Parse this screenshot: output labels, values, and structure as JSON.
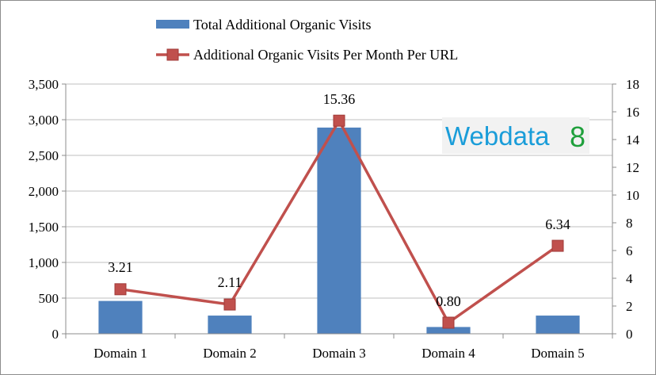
{
  "chart_data": {
    "type": "bar",
    "categories": [
      "Domain 1",
      "Domain 2",
      "Domain 3",
      "Domain 4",
      "Domain 5"
    ],
    "series": [
      {
        "name": "Total Additional Organic Visits",
        "type": "bar",
        "axis": "left",
        "color": "#4f81bd",
        "values": [
          460,
          255,
          2890,
          95,
          255
        ]
      },
      {
        "name": "Additional Organic Visits Per Month Per URL",
        "type": "line",
        "axis": "right",
        "color": "#c0504d",
        "values": [
          3.21,
          2.11,
          15.36,
          0.8,
          6.34
        ],
        "data_labels": [
          "3.21",
          "2.11",
          "15.36",
          "0.80",
          "6.34"
        ]
      }
    ],
    "y_left": {
      "min": 0,
      "max": 3500,
      "ticks": [
        0,
        500,
        1000,
        1500,
        2000,
        2500,
        3000,
        3500
      ],
      "tick_labels": [
        "0",
        "500",
        "1,000",
        "1,500",
        "2,000",
        "2,500",
        "3,000",
        "3,500"
      ]
    },
    "y_right": {
      "min": 0,
      "max": 18,
      "ticks": [
        0,
        2,
        4,
        6,
        8,
        10,
        12,
        14,
        16,
        18
      ],
      "tick_labels": [
        "0",
        "2",
        "4",
        "6",
        "8",
        "10",
        "12",
        "14",
        "16",
        "18"
      ]
    },
    "title": "",
    "xlabel": "",
    "ylabel": "",
    "grid": true,
    "legend_position": "top-center"
  },
  "logo": {
    "text": "Webdata",
    "number": "8"
  }
}
